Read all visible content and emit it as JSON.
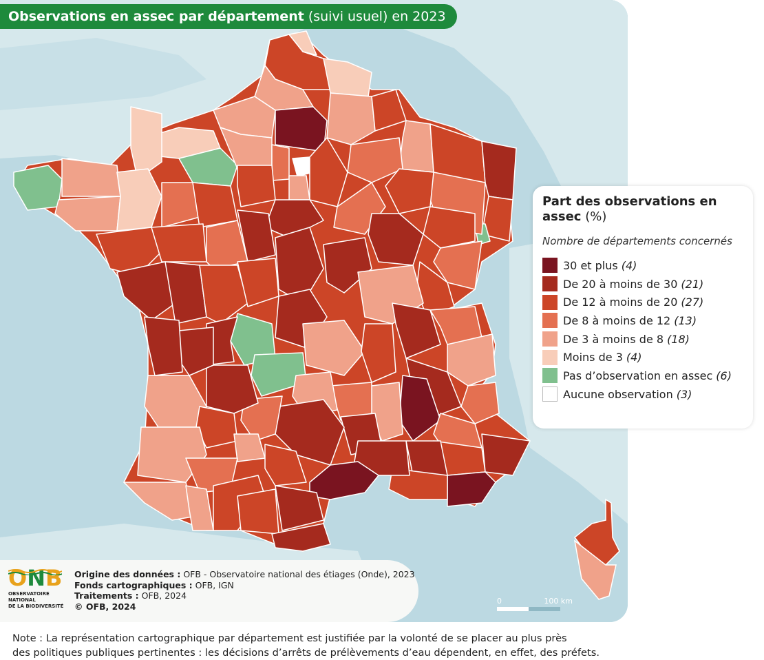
{
  "title": {
    "bold": "Observations en assec par département",
    "normal": "(suivi usuel) en 2023"
  },
  "colors": {
    "sea": "#bcd9e2",
    "land": "#d6e8ec",
    "title_bg": "#1e8a3c",
    "class_30_plus": "#7a1420",
    "class_20_30": "#a52a1e",
    "class_12_20": "#cc4527",
    "class_8_12": "#e47051",
    "class_3_8": "#f0a28a",
    "class_lt3": "#f8cdb9",
    "class_none": "#80c08e",
    "class_no_obs": "#ffffff"
  },
  "legend": {
    "title_bold": "Part des observations en assec",
    "title_unit": "(%)",
    "subtitle": "Nombre de départements concernés",
    "items": [
      {
        "label": "30 et plus",
        "count": "(4)",
        "color": "#7a1420"
      },
      {
        "label": "De 20 à moins de 30",
        "count": "(21)",
        "color": "#a52a1e"
      },
      {
        "label": "De 12 à moins de 20",
        "count": "(27)",
        "color": "#cc4527"
      },
      {
        "label": "De 8 à moins de 12",
        "count": "(13)",
        "color": "#e47051"
      },
      {
        "label": "De 3 à moins de 8",
        "count": "(18)",
        "color": "#f0a28a"
      },
      {
        "label": "Moins de 3",
        "count": "(4)",
        "color": "#f8cdb9"
      },
      {
        "label": "Pas d’observation en assec",
        "count": "(6)",
        "color": "#80c08e"
      },
      {
        "label": "Aucune observation",
        "count": "(3)",
        "color": "#ffffff"
      }
    ]
  },
  "source": {
    "donnees_label": "Origine des données :",
    "donnees_value": "OFB - Observatoire national des étiages (Onde), 2023",
    "fonds_label": "Fonds cartographiques :",
    "fonds_value": "OFB, IGN",
    "traitements_label": "Traitements :",
    "traitements_value": "OFB, 2024",
    "copyright": "© OFB, 2024"
  },
  "logo": {
    "letters": [
      "O",
      "N",
      "B"
    ],
    "letter_colors": [
      "#e8a21b",
      "#1e8a3c",
      "#e8a21b"
    ],
    "line1": "OBSERVATOIRE NATIONAL",
    "line2": "DE LA BIODIVERSITÉ"
  },
  "scale": {
    "start": "0",
    "end": "100 km"
  },
  "note": {
    "line1": "Note : La représentation cartographique par département est justifiée par la volonté de se placer au plus près",
    "line2": "des politiques publiques pertinentes : les décisions d’arrêts de prélèvements d’eau dépendent, en effet, des préfets."
  }
}
